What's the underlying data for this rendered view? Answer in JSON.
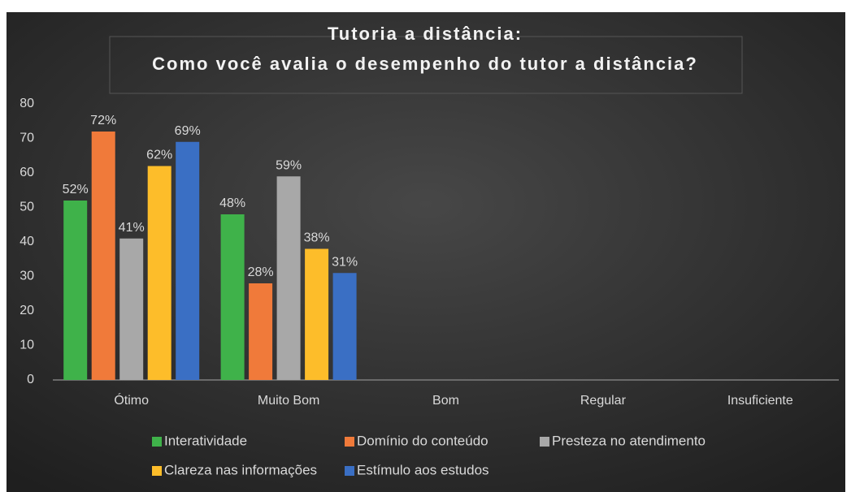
{
  "chart_data": {
    "type": "bar",
    "title": "Tutoria a distância:",
    "subtitle": "Como você avalia o desempenho do tutor a distância?",
    "categories": [
      "Ótimo",
      "Muito Bom",
      "Bom",
      "Regular",
      "Insuficiente"
    ],
    "series": [
      {
        "name": "Interatividade",
        "color": "#3fb24a",
        "values": [
          52,
          48,
          null,
          null,
          null
        ],
        "value_labels": [
          "52%",
          "48%",
          null,
          null,
          null
        ]
      },
      {
        "name": "Domínio do conteúdo",
        "color": "#f07a3a",
        "values": [
          72,
          28,
          null,
          null,
          null
        ],
        "value_labels": [
          "72%",
          "28%",
          null,
          null,
          null
        ]
      },
      {
        "name": "Presteza no atendimento",
        "color": "#a8a8a8",
        "values": [
          41,
          59,
          null,
          null,
          null
        ],
        "value_labels": [
          "41%",
          "59%",
          null,
          null,
          null
        ]
      },
      {
        "name": "Clareza nas informações",
        "color": "#fdbd2a",
        "values": [
          62,
          38,
          null,
          null,
          null
        ],
        "value_labels": [
          "62%",
          "38%",
          null,
          null,
          null
        ]
      },
      {
        "name": "Estímulo aos estudos",
        "color": "#3a6fc4",
        "values": [
          69,
          31,
          null,
          null,
          null
        ],
        "value_labels": [
          "69%",
          "31%",
          null,
          null,
          null
        ]
      }
    ],
    "ylim": [
      0,
      80
    ],
    "yticks": [
      0,
      10,
      20,
      30,
      40,
      50,
      60,
      70,
      80
    ],
    "grid": false,
    "legend": "bottom"
  }
}
